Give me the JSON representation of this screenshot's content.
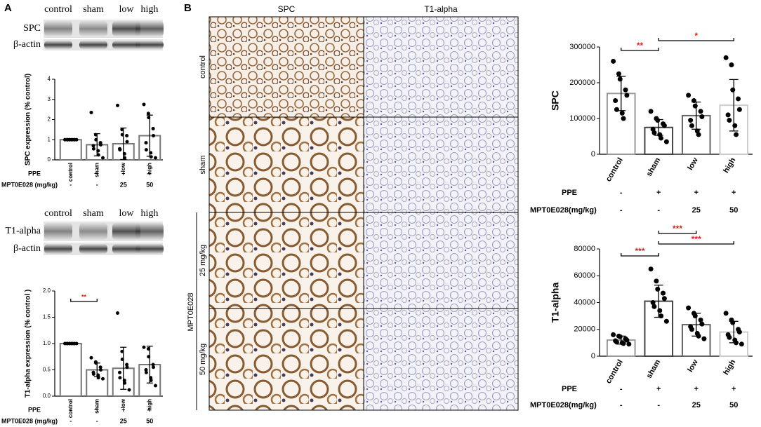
{
  "figure": {
    "panel_labels": [
      "A",
      "B"
    ],
    "blots": [
      {
        "lanes": [
          "control",
          "sham",
          "low",
          "high"
        ],
        "rows": [
          "SPC",
          "β-actin"
        ]
      },
      {
        "lanes": [
          "control",
          "sham",
          "low",
          "high"
        ],
        "rows": [
          "T1-alpha",
          "β-actin"
        ]
      }
    ],
    "micrographs": {
      "columns": [
        "SPC",
        "T1-alpha"
      ],
      "rows": [
        "control",
        "sham",
        "25 mg/kg",
        "50 mg/kg"
      ],
      "group_label": "MPT0E028"
    }
  },
  "chart_data": [
    {
      "type": "bar",
      "ylabel": "SPC expression (% control)",
      "categories": [
        "control",
        "sham",
        "low",
        "high"
      ],
      "values": [
        1.0,
        0.75,
        0.8,
        1.2
      ],
      "errors": [
        0,
        0.55,
        0.78,
        1.02
      ],
      "points": [
        [
          1,
          1,
          1,
          1,
          1,
          1,
          1,
          1,
          1,
          1
        ],
        [
          2.35,
          1.25,
          1.0,
          0.85,
          0.75,
          0.7,
          0.55,
          0.45,
          0.25,
          0.1
        ],
        [
          2.7,
          1.5,
          1.25,
          1.2,
          0.9,
          0.55,
          0.5,
          0.3,
          0.1
        ],
        [
          2.75,
          2.3,
          2.1,
          1.55,
          1.2,
          0.85,
          0.5,
          0.35,
          0.15,
          0.1
        ]
      ],
      "colors": [
        "#777",
        "#777",
        "#777",
        "#777"
      ],
      "ylim": [
        0,
        4
      ],
      "yticks": [
        0,
        1,
        2,
        3,
        4
      ],
      "annotations": [],
      "annotation_color": "#e0201b",
      "treatments": [
        {
          "name": "PPE",
          "values": [
            "-",
            "+",
            "+",
            "+"
          ]
        },
        {
          "name": "MPT0E028 (mg/kg)",
          "values": [
            "-",
            "-",
            "25",
            "50"
          ]
        }
      ]
    },
    {
      "type": "bar",
      "ylabel": "T1-alpha expression (% control )",
      "categories": [
        "control",
        "sham",
        "low",
        "high"
      ],
      "values": [
        1.0,
        0.5,
        0.53,
        0.6
      ],
      "errors": [
        0,
        0.13,
        0.4,
        0.35
      ],
      "points": [
        [
          1,
          1,
          1,
          1,
          1,
          1,
          1,
          1,
          1,
          1
        ],
        [
          0.73,
          0.65,
          0.63,
          0.55,
          0.5,
          0.45,
          0.42,
          0.4,
          0.35,
          0.33
        ],
        [
          1.58,
          0.85,
          0.7,
          0.6,
          0.55,
          0.45,
          0.35,
          0.3,
          0.25,
          0.12
        ],
        [
          0.93,
          0.9,
          0.75,
          0.6,
          0.55,
          0.5,
          0.45,
          0.35,
          0.3,
          0.2
        ]
      ],
      "colors": [
        "#777",
        "#777",
        "#777",
        "#777"
      ],
      "ylim": [
        0,
        2
      ],
      "yticks": [
        {
          "value": 0,
          "label": "0.0"
        },
        0.5,
        {
          "value": 1,
          "label": "1.0"
        },
        1.5,
        {
          "value": 2,
          "label": "2.0"
        }
      ],
      "annotations": [
        {
          "between": [
            "control",
            "sham"
          ],
          "label": "**"
        }
      ],
      "annotation_color": "#e0201b",
      "treatments": [
        {
          "name": "PPE",
          "values": [
            "-",
            "+",
            "+",
            "+"
          ]
        },
        {
          "name": "MPT0E028 (mg/kg)",
          "values": [
            "-",
            "-",
            "25",
            "50"
          ]
        }
      ]
    },
    {
      "type": "bar",
      "ylabel": "SPC",
      "categories": [
        "control",
        "sham",
        "low",
        "high"
      ],
      "values": [
        170000,
        75000,
        108000,
        137000
      ],
      "errors": [
        48000,
        22000,
        38000,
        72000
      ],
      "points": [
        [
          260000,
          225000,
          210000,
          180000,
          165000,
          150000,
          125000,
          115000,
          100000
        ],
        [
          120000,
          100000,
          95000,
          85000,
          80000,
          70000,
          60000,
          55000,
          45000,
          35000
        ],
        [
          165000,
          150000,
          135000,
          120000,
          105000,
          95000,
          80000,
          65000,
          55000
        ],
        [
          270000,
          250000,
          180000,
          155000,
          125000,
          110000,
          95000,
          80000,
          55000
        ]
      ],
      "colors": [
        "#999",
        "#444",
        "#666",
        "#ccc"
      ],
      "ylim": [
        0,
        300000
      ],
      "yticks": [
        0,
        100000,
        200000,
        300000
      ],
      "annotations": [
        {
          "between": [
            "control",
            "sham"
          ],
          "label": "**"
        },
        {
          "between": [
            "sham",
            "high"
          ],
          "label": "*"
        }
      ],
      "annotation_color": "#e0201b",
      "treatments": [
        {
          "name": "PPE",
          "values": [
            "-",
            "+",
            "+",
            "+"
          ]
        },
        {
          "name": "MPT0E028(mg/kg)",
          "values": [
            "-",
            "-",
            "25",
            "50"
          ]
        }
      ]
    },
    {
      "type": "bar",
      "ylabel": "T1-alpha",
      "categories": [
        "control",
        "sham",
        "low",
        "high"
      ],
      "values": [
        12000,
        41000,
        23500,
        18000
      ],
      "errors": [
        3000,
        12000,
        8500,
        8000
      ],
      "points": [
        [
          16000,
          15000,
          14500,
          13000,
          12000,
          11500,
          10500,
          10000,
          9500,
          9000
        ],
        [
          65000,
          56000,
          50000,
          47000,
          43000,
          40000,
          37000,
          34000,
          30000,
          26000
        ],
        [
          36000,
          32000,
          30000,
          27000,
          24000,
          22000,
          20000,
          17000,
          15000,
          13000
        ],
        [
          32000,
          27000,
          25000,
          20000,
          18000,
          16000,
          14000,
          12000,
          10000,
          9000
        ]
      ],
      "colors": [
        "#999",
        "#444",
        "#666",
        "#ccc"
      ],
      "ylim": [
        0,
        80000
      ],
      "yticks": [
        0,
        20000,
        40000,
        60000,
        80000
      ],
      "annotations": [
        {
          "between": [
            "control",
            "sham"
          ],
          "label": "***"
        },
        {
          "between": [
            "sham",
            "low"
          ],
          "label": "***"
        },
        {
          "between": [
            "sham",
            "high"
          ],
          "label": "***"
        }
      ],
      "annotation_color": "#e0201b",
      "treatments": [
        {
          "name": "PPE",
          "values": [
            "-",
            "+",
            "+",
            "+"
          ]
        },
        {
          "name": "MPT0E028(mg/kg)",
          "values": [
            "-",
            "-",
            "25",
            "50"
          ]
        }
      ]
    }
  ]
}
